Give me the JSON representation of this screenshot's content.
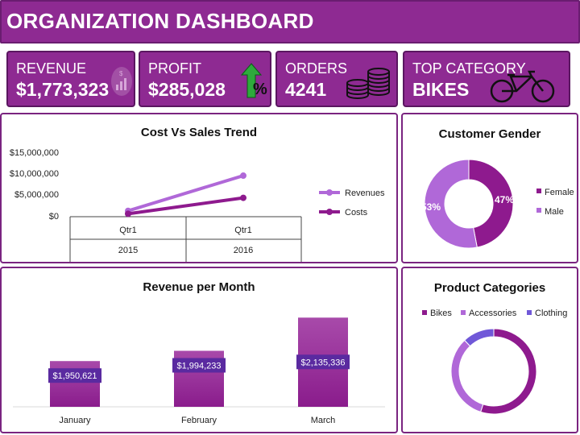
{
  "header": {
    "title": "ORGANIZATION DASHBOARD"
  },
  "kpis": {
    "revenue": {
      "label": "REVENUE",
      "value": "$1,773,323"
    },
    "profit": {
      "label": "PROFIT",
      "value": "$285,028"
    },
    "orders": {
      "label": "ORDERS",
      "value": "4241"
    },
    "top_category": {
      "label": "TOP CATEGORY",
      "value": "BIKES"
    }
  },
  "chart_data": [
    {
      "id": "cost_vs_sales",
      "type": "line",
      "title": "Cost Vs Sales Trend",
      "categories": [
        "Qtr1",
        "Qtr1"
      ],
      "group_labels": [
        "2015",
        "2016"
      ],
      "yticks": [
        "$15,000,000",
        "$10,000,000",
        "$5,000,000",
        "$0"
      ],
      "ylim": [
        0,
        15000000
      ],
      "series": [
        {
          "name": "Revenues",
          "values": [
            1400000,
            9800000
          ],
          "color": "#b068d8"
        },
        {
          "name": "Costs",
          "values": [
            700000,
            4500000
          ],
          "color": "#8e1a8e"
        }
      ]
    },
    {
      "id": "customer_gender",
      "type": "pie",
      "title": "Customer Gender",
      "labels": [
        "Female",
        "Male"
      ],
      "values": [
        47,
        53
      ],
      "data_labels": [
        "47%",
        "53%"
      ],
      "colors": [
        "#8e1a8e",
        "#b068d8"
      ]
    },
    {
      "id": "revenue_per_month",
      "type": "bar",
      "title": "Revenue per Month",
      "categories": [
        "January",
        "February",
        "March"
      ],
      "values": [
        1950621,
        1994233,
        2135336
      ],
      "data_labels": [
        "$1,950,621",
        "$1,994,233",
        "$2,135,336"
      ],
      "ylim": [
        1900000,
        2150000
      ]
    },
    {
      "id": "product_categories",
      "type": "pie",
      "title": "Product Categories",
      "labels": [
        "Bikes",
        "Accessories",
        "Clothing"
      ],
      "values": [
        55,
        33,
        12
      ],
      "colors": [
        "#8e1a8e",
        "#b068d8",
        "#7058d8"
      ]
    }
  ]
}
